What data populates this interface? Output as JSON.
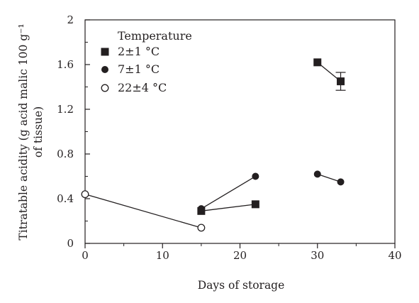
{
  "chart_data": {
    "type": "scatter",
    "title": "",
    "xlabel": "Days of storage",
    "ylabel_lines": [
      "Titratable acidity (g acid malic 100 g⁻¹",
      "of tissue)"
    ],
    "xlim": [
      0,
      40
    ],
    "ylim": [
      0,
      2
    ],
    "x_ticks": [
      0,
      10,
      20,
      30,
      40
    ],
    "y_ticks": [
      0,
      0.4,
      0.8,
      1.2,
      1.6,
      2
    ],
    "y_tick_labels": [
      "0",
      "0.4",
      "0.8",
      "1.2",
      "1.6",
      "2"
    ],
    "x_tick_labels": [
      "0",
      "10",
      "20",
      "30",
      "40"
    ],
    "grid": false,
    "legend_title": "Temperature",
    "legend_position": "top-left",
    "series": [
      {
        "name": "2±1 °C",
        "marker": "filled-square",
        "segments": [
          [
            {
              "x": 15,
              "y": 0.29
            },
            {
              "x": 22,
              "y": 0.35
            }
          ],
          [
            {
              "x": 30,
              "y": 1.62
            },
            {
              "x": 33,
              "y": 1.45,
              "error": 0.08
            }
          ]
        ]
      },
      {
        "name": "7±1 °C",
        "marker": "filled-circle",
        "segments": [
          [
            {
              "x": 15,
              "y": 0.31
            },
            {
              "x": 22,
              "y": 0.6
            }
          ],
          [
            {
              "x": 30,
              "y": 0.62
            },
            {
              "x": 33,
              "y": 0.55
            }
          ]
        ]
      },
      {
        "name": "22±4 °C",
        "marker": "open-circle",
        "segments": [
          [
            {
              "x": 0,
              "y": 0.44
            },
            {
              "x": 15,
              "y": 0.14
            }
          ]
        ]
      }
    ]
  }
}
